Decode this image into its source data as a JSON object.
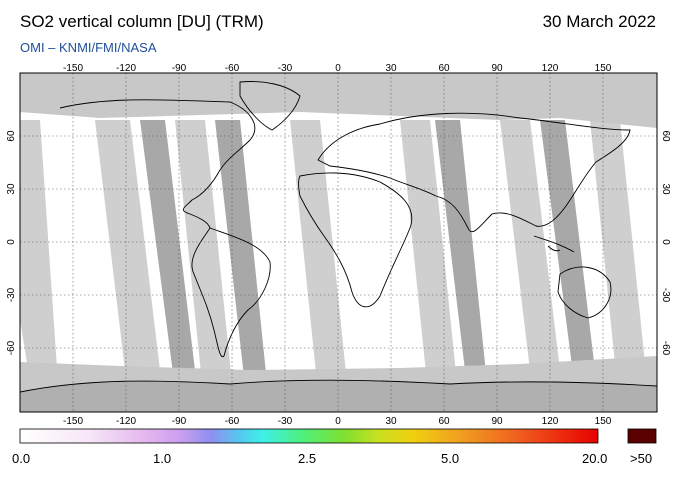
{
  "header": {
    "title": "SO2 vertical column [DU] (TRM)",
    "date": "30 March 2022",
    "credit": "OMI  –  KNMI/FMI/NASA"
  },
  "map": {
    "lon_ticks": [
      "-150",
      "-120",
      "-90",
      "-60",
      "-30",
      "0",
      "30",
      "60",
      "90",
      "120",
      "150"
    ],
    "lat_ticks_left": [
      "60",
      "30",
      "0",
      "-30",
      "-60"
    ],
    "lat_ticks_right": [
      "60",
      "30",
      "0",
      "-30",
      "-60"
    ]
  },
  "colorbar": {
    "labels": [
      "0.0",
      "1.0",
      "2.5",
      "5.0",
      "20.0",
      ">50"
    ],
    "overflow_color": "#5a0000"
  },
  "colors": {
    "background": "#ffffff",
    "no_data": "#c8c8c8",
    "swath_gap": "#a8a8a8",
    "credit": "#1f4e9a"
  }
}
